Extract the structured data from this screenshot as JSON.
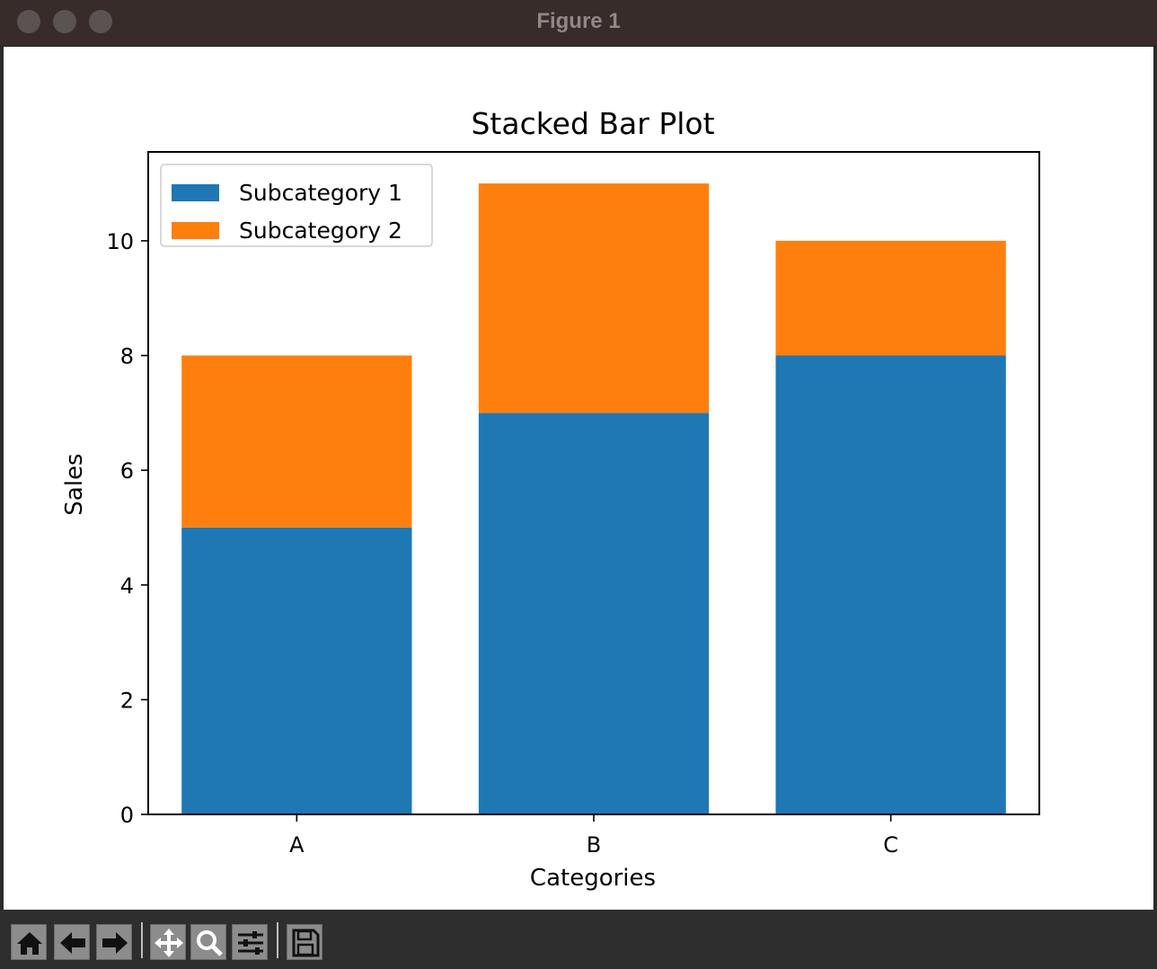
{
  "window": {
    "title": "Figure 1"
  },
  "toolbar": {
    "buttons": [
      {
        "name": "home",
        "icon": "home-icon"
      },
      {
        "name": "back",
        "icon": "arrow-left-icon"
      },
      {
        "name": "forward",
        "icon": "arrow-right-icon"
      },
      {
        "name": "pan",
        "icon": "move-icon"
      },
      {
        "name": "zoom",
        "icon": "magnifier-icon"
      },
      {
        "name": "configure-subplots",
        "icon": "sliders-icon"
      },
      {
        "name": "save",
        "icon": "floppy-disk-icon"
      }
    ]
  },
  "chart_data": {
    "type": "bar",
    "stacked": true,
    "title": "Stacked Bar Plot",
    "xlabel": "Categories",
    "ylabel": "Sales",
    "categories": [
      "A",
      "B",
      "C"
    ],
    "series": [
      {
        "name": "Subcategory 1",
        "values": [
          5,
          7,
          8
        ],
        "color": "#1f77b4"
      },
      {
        "name": "Subcategory 2",
        "values": [
          3,
          4,
          2
        ],
        "color": "#ff7f0e"
      }
    ],
    "ylim": [
      0,
      11.55
    ],
    "yticks": [
      "0",
      "2",
      "4",
      "6",
      "8",
      "10"
    ],
    "legend": "top-left",
    "grid": false
  }
}
